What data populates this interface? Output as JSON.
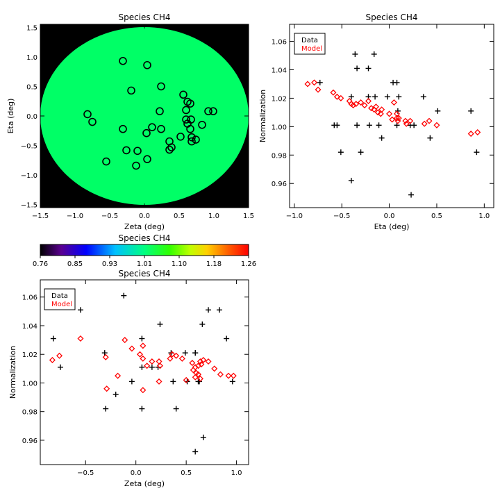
{
  "chart_data": [
    {
      "type": "scatter",
      "title": "Species CH4",
      "xlabel": "Zeta (deg)",
      "ylabel": "Eta (deg)",
      "xlim": [
        -1.5,
        1.5
      ],
      "ylim": [
        -1.55,
        1.55
      ],
      "xticks": [
        "−1.5",
        "−1.0",
        "−0.5",
        "0.0",
        "0.5",
        "1.0",
        "1.5"
      ],
      "yticks": [
        "−1.5",
        "−1.0",
        "−0.5",
        "0.0",
        "0.5",
        "1.0",
        "1.5"
      ],
      "background_color": "#000000",
      "disk_color": "#00ff66",
      "disk_radius": 1.5,
      "points": [
        {
          "x": -0.31,
          "y": 0.93
        },
        {
          "x": 0.04,
          "y": 0.86
        },
        {
          "x": -0.19,
          "y": 0.43
        },
        {
          "x": 0.24,
          "y": 0.5
        },
        {
          "x": -0.82,
          "y": 0.03
        },
        {
          "x": -0.75,
          "y": -0.1
        },
        {
          "x": -0.31,
          "y": -0.22
        },
        {
          "x": 0.03,
          "y": -0.29
        },
        {
          "x": 0.11,
          "y": -0.19
        },
        {
          "x": 0.22,
          "y": 0.08
        },
        {
          "x": 0.24,
          "y": -0.22
        },
        {
          "x": 0.56,
          "y": 0.36
        },
        {
          "x": 0.62,
          "y": 0.24
        },
        {
          "x": 0.66,
          "y": 0.21
        },
        {
          "x": 0.6,
          "y": 0.1
        },
        {
          "x": 0.6,
          "y": -0.06
        },
        {
          "x": 0.67,
          "y": -0.06
        },
        {
          "x": 0.62,
          "y": -0.13
        },
        {
          "x": 0.66,
          "y": -0.22
        },
        {
          "x": 0.52,
          "y": -0.35
        },
        {
          "x": 0.68,
          "y": -0.36
        },
        {
          "x": 0.74,
          "y": -0.4
        },
        {
          "x": 0.68,
          "y": -0.43
        },
        {
          "x": 0.83,
          "y": -0.15
        },
        {
          "x": 0.92,
          "y": 0.08
        },
        {
          "x": 0.99,
          "y": 0.08
        },
        {
          "x": 0.36,
          "y": -0.43
        },
        {
          "x": 0.39,
          "y": -0.53
        },
        {
          "x": 0.36,
          "y": -0.57
        },
        {
          "x": -0.26,
          "y": -0.58
        },
        {
          "x": -0.1,
          "y": -0.59
        },
        {
          "x": -0.12,
          "y": -0.84
        },
        {
          "x": 0.04,
          "y": -0.73
        },
        {
          "x": -0.55,
          "y": -0.77
        }
      ]
    },
    {
      "type": "scatter",
      "title": "Species CH4",
      "xlabel": "Eta (deg)",
      "ylabel": "Normalization",
      "xlim": [
        -1.05,
        1.1
      ],
      "ylim": [
        0.943,
        1.072
      ],
      "xticks": [
        "−1.0",
        "−0.5",
        "0.0",
        "0.5",
        "1.0"
      ],
      "yticks": [
        "0.96",
        "0.98",
        "1.00",
        "1.02",
        "1.04",
        "1.06"
      ],
      "legend": [
        "Data",
        "Model"
      ],
      "series": [
        {
          "name": "Data",
          "color": "#000000",
          "marker": "plus",
          "points": [
            [
              -0.8,
              1.061
            ],
            [
              -0.73,
              1.031
            ],
            [
              -0.58,
              1.001
            ],
            [
              -0.55,
              1.001
            ],
            [
              -0.51,
              0.982
            ],
            [
              -0.4,
              0.962
            ],
            [
              -0.4,
              1.021
            ],
            [
              -0.36,
              1.051
            ],
            [
              -0.34,
              1.041
            ],
            [
              -0.34,
              1.001
            ],
            [
              -0.3,
              0.982
            ],
            [
              -0.22,
              1.041
            ],
            [
              -0.22,
              1.021
            ],
            [
              -0.21,
              1.001
            ],
            [
              -0.16,
              1.051
            ],
            [
              -0.15,
              1.021
            ],
            [
              -0.11,
              1.001
            ],
            [
              -0.08,
              0.992
            ],
            [
              -0.02,
              1.021
            ],
            [
              0.04,
              1.031
            ],
            [
              0.08,
              1.031
            ],
            [
              0.08,
              1.001
            ],
            [
              0.09,
              1.011
            ],
            [
              0.1,
              1.021
            ],
            [
              0.22,
              1.001
            ],
            [
              0.23,
              0.952
            ],
            [
              0.26,
              1.001
            ],
            [
              0.36,
              1.021
            ],
            [
              0.43,
              0.992
            ],
            [
              0.51,
              1.011
            ],
            [
              0.86,
              1.011
            ],
            [
              0.92,
              0.982
            ]
          ]
        },
        {
          "name": "Model",
          "color": "#ff0000",
          "marker": "diamond",
          "points": [
            [
              -0.86,
              1.03
            ],
            [
              -0.79,
              1.031
            ],
            [
              -0.75,
              1.026
            ],
            [
              -0.59,
              1.024
            ],
            [
              -0.55,
              1.021
            ],
            [
              -0.51,
              1.02
            ],
            [
              -0.42,
              1.018
            ],
            [
              -0.4,
              1.016
            ],
            [
              -0.38,
              1.015
            ],
            [
              -0.35,
              1.016
            ],
            [
              -0.3,
              1.017
            ],
            [
              -0.26,
              1.015
            ],
            [
              -0.22,
              1.018
            ],
            [
              -0.19,
              1.013
            ],
            [
              -0.16,
              1.012
            ],
            [
              -0.14,
              1.014
            ],
            [
              -0.12,
              1.01
            ],
            [
              -0.09,
              1.009
            ],
            [
              -0.08,
              1.012
            ],
            [
              0.0,
              1.009
            ],
            [
              0.03,
              1.005
            ],
            [
              0.05,
              1.017
            ],
            [
              0.08,
              1.006
            ],
            [
              0.08,
              1.009
            ],
            [
              0.09,
              1.004
            ],
            [
              0.1,
              1.006
            ],
            [
              0.17,
              1.004
            ],
            [
              0.18,
              1.002
            ],
            [
              0.22,
              1.004
            ],
            [
              0.37,
              1.002
            ],
            [
              0.42,
              1.004
            ],
            [
              0.5,
              1.001
            ],
            [
              0.86,
              0.995
            ],
            [
              0.93,
              0.996
            ]
          ]
        }
      ]
    },
    {
      "type": "scatter",
      "title": "Species CH4",
      "xlabel": "Zeta (deg)",
      "ylabel": "Normalization",
      "xlim": [
        -0.95,
        1.12
      ],
      "ylim": [
        0.943,
        1.072
      ],
      "xticks": [
        "−0.5",
        "0.0",
        "0.5",
        "1.0"
      ],
      "yticks": [
        "0.96",
        "0.98",
        "1.00",
        "1.02",
        "1.04",
        "1.06"
      ],
      "legend": [
        "Data",
        "Model"
      ],
      "series": [
        {
          "name": "Data",
          "color": "#000000",
          "marker": "plus",
          "points": [
            [
              -0.82,
              1.031
            ],
            [
              -0.75,
              1.011
            ],
            [
              -0.55,
              1.051
            ],
            [
              -0.31,
              1.021
            ],
            [
              -0.3,
              0.982
            ],
            [
              -0.2,
              0.992
            ],
            [
              -0.12,
              1.061
            ],
            [
              -0.04,
              1.001
            ],
            [
              0.06,
              1.031
            ],
            [
              0.06,
              0.982
            ],
            [
              0.06,
              1.011
            ],
            [
              0.16,
              1.011
            ],
            [
              0.22,
              1.011
            ],
            [
              0.24,
              1.041
            ],
            [
              0.35,
              1.021
            ],
            [
              0.37,
              1.001
            ],
            [
              0.4,
              0.982
            ],
            [
              0.49,
              1.021
            ],
            [
              0.51,
              1.001
            ],
            [
              0.59,
              1.021
            ],
            [
              0.59,
              1.021
            ],
            [
              0.59,
              0.952
            ],
            [
              0.62,
              1.001
            ],
            [
              0.63,
              1.001
            ],
            [
              0.66,
              1.041
            ],
            [
              0.67,
              0.962
            ],
            [
              0.72,
              1.051
            ],
            [
              0.83,
              1.051
            ],
            [
              0.9,
              1.031
            ],
            [
              0.96,
              1.001
            ]
          ]
        },
        {
          "name": "Model",
          "color": "#ff0000",
          "marker": "diamond",
          "points": [
            [
              -0.83,
              1.016
            ],
            [
              -0.76,
              1.019
            ],
            [
              -0.55,
              1.031
            ],
            [
              -0.3,
              1.018
            ],
            [
              -0.29,
              0.996
            ],
            [
              -0.18,
              1.005
            ],
            [
              -0.11,
              1.03
            ],
            [
              -0.04,
              1.024
            ],
            [
              0.04,
              1.02
            ],
            [
              0.07,
              1.026
            ],
            [
              0.07,
              1.017
            ],
            [
              0.07,
              0.995
            ],
            [
              0.11,
              1.012
            ],
            [
              0.16,
              1.015
            ],
            [
              0.23,
              1.015
            ],
            [
              0.23,
              1.001
            ],
            [
              0.24,
              1.012
            ],
            [
              0.34,
              1.017
            ],
            [
              0.36,
              1.02
            ],
            [
              0.4,
              1.019
            ],
            [
              0.46,
              1.017
            ],
            [
              0.5,
              1.002
            ],
            [
              0.56,
              1.014
            ],
            [
              0.57,
              1.009
            ],
            [
              0.59,
              1.011
            ],
            [
              0.59,
              1.004
            ],
            [
              0.6,
              1.007
            ],
            [
              0.62,
              1.012
            ],
            [
              0.62,
              1.006
            ],
            [
              0.64,
              1.003
            ],
            [
              0.64,
              1.015
            ],
            [
              0.65,
              1.013
            ],
            [
              0.67,
              1.016
            ],
            [
              0.72,
              1.015
            ],
            [
              0.78,
              1.01
            ],
            [
              0.84,
              1.006
            ],
            [
              0.92,
              1.005
            ],
            [
              0.97,
              1.005
            ]
          ]
        }
      ]
    }
  ],
  "colorbar": {
    "title": "Species CH4",
    "ticks": [
      "0.76",
      "0.85",
      "0.93",
      "1.01",
      "1.10",
      "1.18",
      "1.26"
    ]
  }
}
